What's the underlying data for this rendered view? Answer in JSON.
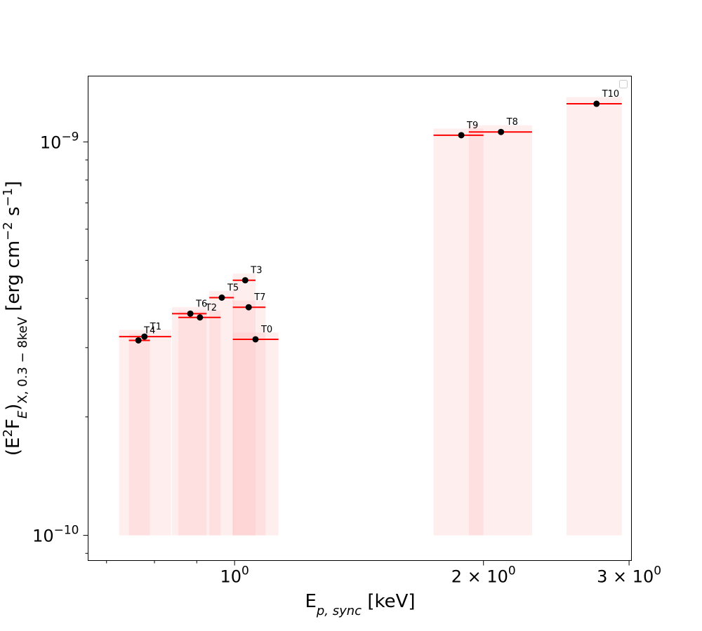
{
  "chart_data": {
    "type": "scatter",
    "title": "",
    "xlabel": {
      "main": "E",
      "sub": "p, sync",
      "unit": " [keV]"
    },
    "ylabel": {
      "pre": "(E",
      "sup1": "2",
      "mid1": "F",
      "sub1": "E",
      "mid2": ")",
      "sub2": "X, 0.3 − 8keV",
      "mid3": " [erg cm",
      "sup2": "−2",
      "mid4": " s",
      "sup3": "−1",
      "post": "]"
    },
    "x_scale": "log",
    "y_scale": "log",
    "xlim": [
      0.665,
      3.02
    ],
    "ylim": [
      8.63e-11,
      1.47e-09
    ],
    "x_ticks": [
      {
        "value": 1,
        "label": "10",
        "exp": "0"
      },
      {
        "value": 2,
        "label": "2 × 10",
        "exp": "0"
      },
      {
        "value": 3,
        "label": "3 × 10",
        "exp": "0"
      }
    ],
    "y_ticks": [
      {
        "value": 1e-10,
        "label": "10",
        "exp": "−10"
      },
      {
        "value": 1e-09,
        "label": "10",
        "exp": "−9"
      }
    ],
    "legend": {
      "position": "upper right",
      "entries": []
    },
    "colors": {
      "marker": "#000000",
      "xerr": "#ff0000",
      "band": "#ffb3b3"
    },
    "band_floor": 1e-10,
    "points": [
      {
        "label": "T0",
        "x": 1.06,
        "y": 3.15e-10,
        "xlo": 0.995,
        "xhi": 1.13
      },
      {
        "label": "T1",
        "x": 0.778,
        "y": 3.2e-10,
        "xlo": 0.725,
        "xhi": 0.838
      },
      {
        "label": "T2",
        "x": 0.908,
        "y": 3.58e-10,
        "xlo": 0.855,
        "xhi": 0.962
      },
      {
        "label": "T3",
        "x": 1.03,
        "y": 4.45e-10,
        "xlo": 0.995,
        "xhi": 1.06
      },
      {
        "label": "T4",
        "x": 0.765,
        "y": 3.13e-10,
        "xlo": 0.745,
        "xhi": 0.79
      },
      {
        "label": "T5",
        "x": 0.965,
        "y": 4.02e-10,
        "xlo": 0.932,
        "xhi": 0.998
      },
      {
        "label": "T6",
        "x": 0.884,
        "y": 3.66e-10,
        "xlo": 0.84,
        "xhi": 0.925
      },
      {
        "label": "T7",
        "x": 1.04,
        "y": 3.8e-10,
        "xlo": 0.995,
        "xhi": 1.09
      },
      {
        "label": "T8",
        "x": 2.1,
        "y": 1.06e-09,
        "xlo": 1.92,
        "xhi": 2.29
      },
      {
        "label": "T9",
        "x": 1.88,
        "y": 1.04e-09,
        "xlo": 1.74,
        "xhi": 2.0
      },
      {
        "label": "T10",
        "x": 2.74,
        "y": 1.25e-09,
        "xlo": 2.52,
        "xhi": 2.94
      }
    ]
  }
}
